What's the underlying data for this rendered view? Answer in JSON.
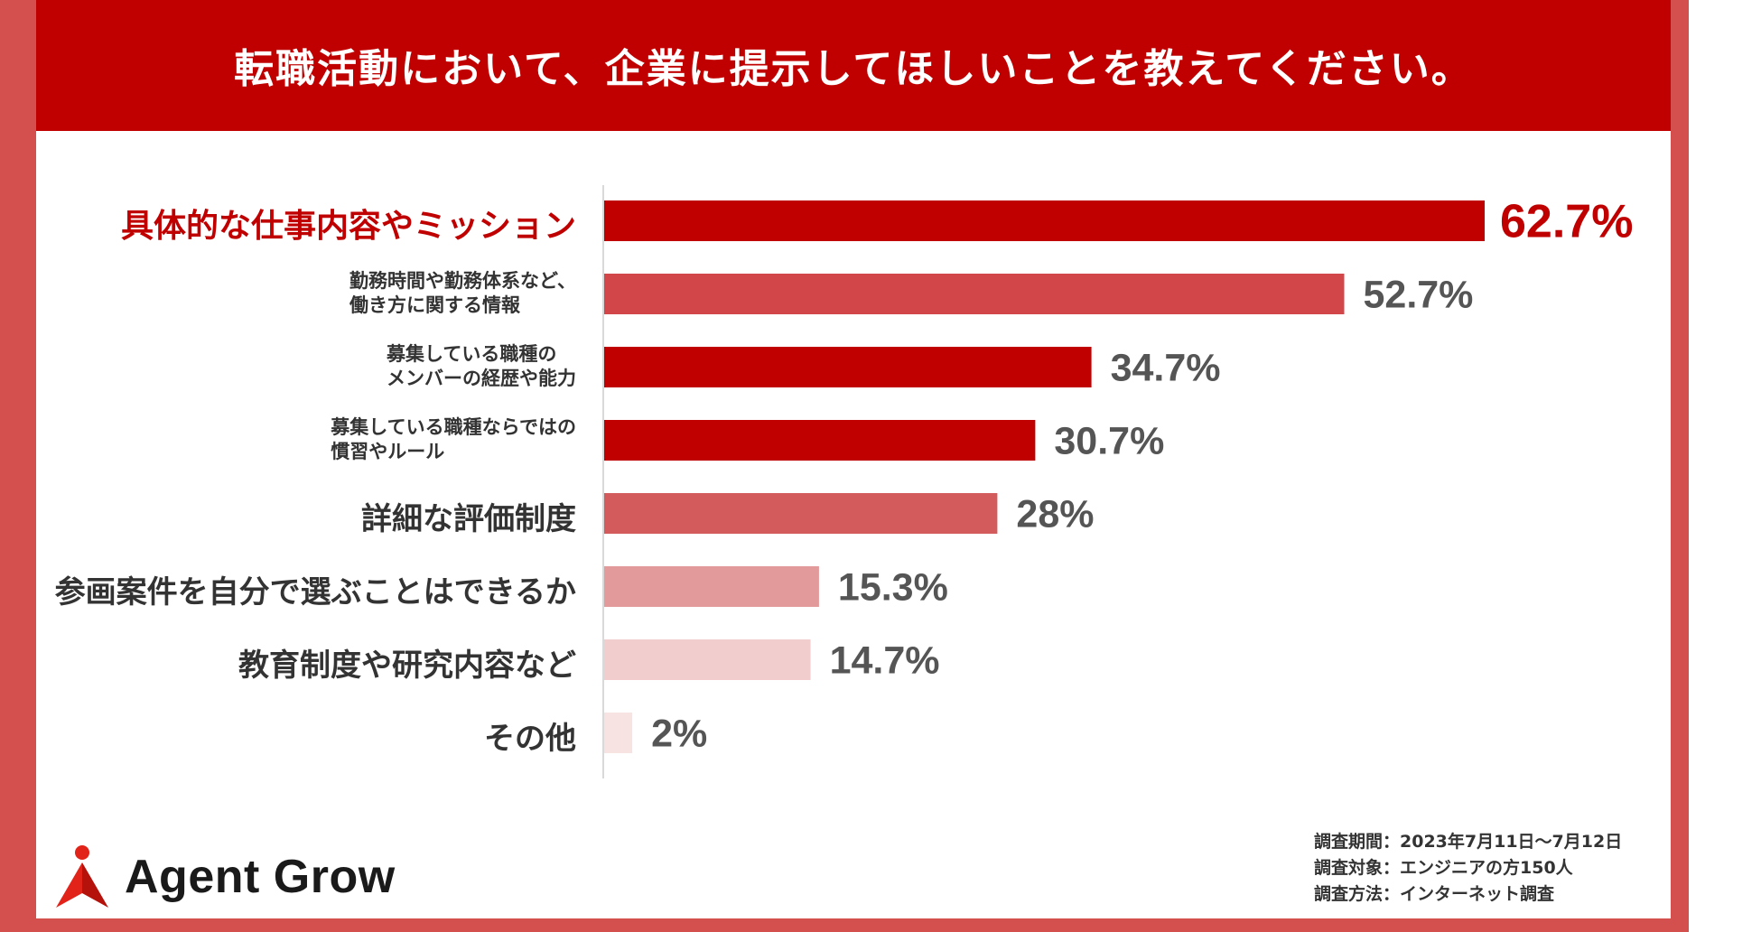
{
  "title": "転職活動において、企業に提示してほしいことを教えてください。",
  "colors": {
    "frame": "#d4504e",
    "header": "#c00000",
    "text": "#333333"
  },
  "chart_data": {
    "type": "bar",
    "orientation": "horizontal",
    "categories": [
      "具体的な仕事内容やミッション",
      [
        "勤務時間や勤務体系など、",
        "働き方に関する情報"
      ],
      [
        "募集している職種の",
        "メンバーの経歴や能力"
      ],
      [
        "募集している職種ならではの",
        "慣習やルール"
      ],
      "詳細な評価制度",
      "参画案件を自分で選ぶことはできるか",
      "教育制度や研究内容など",
      "その他"
    ],
    "values": [
      62.7,
      52.7,
      34.7,
      30.7,
      28,
      15.3,
      14.7,
      2
    ],
    "value_labels": [
      "62.7%",
      "52.7%",
      "34.7%",
      "30.7%",
      "28%",
      "15.3%",
      "14.7%",
      "2%"
    ],
    "bar_colors": [
      "#c00000",
      "#d24548",
      "#c00000",
      "#c00000",
      "#d35b5b",
      "#e29a9a",
      "#f2cdcd",
      "#f8e3e3"
    ],
    "xlim": [
      0,
      62.7
    ]
  },
  "brand": {
    "name": "Agent Grow",
    "icon": "person-arrow-logo-icon"
  },
  "survey": {
    "period": "調査期間：2023年7月11日〜7月12日",
    "target": "調査対象：エンジニアの方150人",
    "method": "調査方法：インターネット調査"
  }
}
